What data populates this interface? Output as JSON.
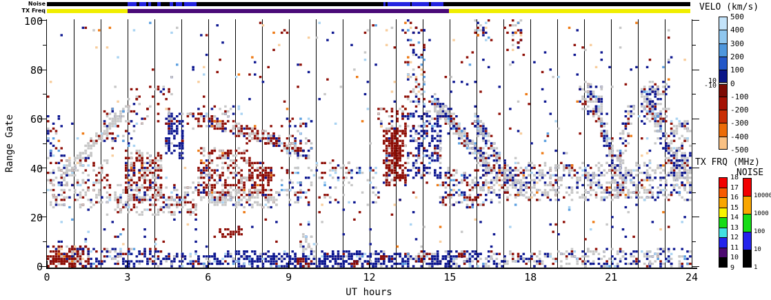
{
  "header": {
    "noise_label": "Noise",
    "txfreq_label": "TX Freq"
  },
  "axes": {
    "ylabel": "Range Gate",
    "xlabel": "UT hours",
    "yticks": [
      0,
      20,
      40,
      60,
      80,
      100
    ],
    "yminor": [
      10,
      30,
      50,
      70,
      90
    ],
    "xticks": [
      0,
      3,
      6,
      9,
      12,
      15,
      18,
      21,
      24
    ],
    "hour_gridlines": [
      1,
      2,
      3,
      4,
      5,
      6,
      7,
      8,
      9,
      10,
      11,
      12,
      13,
      14,
      15,
      16,
      17,
      18,
      19,
      20,
      21,
      22,
      23
    ]
  },
  "strips": {
    "noise": {
      "base_color": "#000000",
      "active_color": "#2424e0",
      "active_spans_hours": [
        [
          3.0,
          3.34
        ],
        [
          3.44,
          3.7
        ],
        [
          3.77,
          3.88
        ],
        [
          4.11,
          4.24
        ],
        [
          4.57,
          4.72
        ],
        [
          4.8,
          5.05
        ],
        [
          5.12,
          5.57
        ],
        [
          12.55,
          12.62
        ],
        [
          12.71,
          13.55
        ],
        [
          13.62,
          14.25
        ],
        [
          14.32,
          14.78
        ]
      ]
    },
    "txfreq": {
      "segments": [
        {
          "from_hour": 0,
          "to_hour": 3.02,
          "color": "#f0ee00"
        },
        {
          "from_hour": 3.02,
          "to_hour": 15.0,
          "color": "#4a0a78"
        },
        {
          "from_hour": 15.0,
          "to_hour": 24,
          "color": "#f0ee00"
        }
      ]
    }
  },
  "colorbars": {
    "velo": {
      "title": "VELO (km/s)",
      "vmax": 500,
      "vmin": -500,
      "ticks": [
        500,
        400,
        300,
        200,
        100,
        0,
        -100,
        -200,
        -300,
        -400,
        -500
      ],
      "side_ticks": [
        "10",
        "-10"
      ],
      "segments": [
        {
          "from": 500,
          "to": 400,
          "color": "#c3e3f9"
        },
        {
          "from": 400,
          "to": 300,
          "color": "#8fc7ef"
        },
        {
          "from": 300,
          "to": 200,
          "color": "#4e97dd"
        },
        {
          "from": 200,
          "to": 100,
          "color": "#2458c8"
        },
        {
          "from": 100,
          "to": 10,
          "color": "#0a1688"
        },
        {
          "from": 10,
          "to": -10,
          "color": "#c0c0c0"
        },
        {
          "from": -10,
          "to": -100,
          "color": "#7c0a04"
        },
        {
          "from": -100,
          "to": -200,
          "color": "#a51205"
        },
        {
          "from": -200,
          "to": -300,
          "color": "#c92f05"
        },
        {
          "from": -300,
          "to": -400,
          "color": "#ec6c08"
        },
        {
          "from": -400,
          "to": -500,
          "color": "#f9c184"
        }
      ]
    },
    "txfrq": {
      "title": "TX FRQ (MHz)",
      "ticks": [
        18,
        17,
        16,
        15,
        14,
        13,
        12,
        11,
        10,
        9
      ],
      "segment_colors": [
        "#f20000",
        "#f85a00",
        "#f9a600",
        "#f8f400",
        "#16dc16",
        "#42e2e2",
        "#2424ec",
        "#4c0a70",
        "#000000"
      ]
    },
    "noise": {
      "title": "NOISE",
      "ticks": [
        "10000",
        "1000",
        "100",
        "10",
        "1"
      ],
      "segment_colors": [
        "#f20000",
        "#f9a600",
        "#16dc16",
        "#2424ec",
        "#000000"
      ]
    }
  },
  "chart_data": {
    "type": "scatter",
    "title": "",
    "xlabel": "UT hours",
    "ylabel": "Range Gate",
    "x_range": [
      0,
      24
    ],
    "y_range": [
      0,
      100
    ],
    "grid": "vertical hour lines",
    "legend_position": "right colorbars (VELO km/s, TX FRQ MHz, NOISE)",
    "seed": 7,
    "cell_cols": 240,
    "cell_rows": 101,
    "colors": {
      "navy": "#0c1690",
      "dred": "#8e0d05",
      "gray": "#c7c7c7",
      "lblue": "#a9d3f2",
      "mblue": "#5b9fe0",
      "peach": "#f8cd9c",
      "orange": "#ee7a14"
    },
    "palettes": {
      "navyDense": [
        [
          "navy",
          0.84
        ],
        [
          "gray",
          0.07
        ],
        [
          "dred",
          0.04
        ],
        [
          "lblue",
          0.03
        ],
        [
          "mblue",
          0.02
        ]
      ],
      "navyMix": [
        [
          "navy",
          0.6
        ],
        [
          "gray",
          0.16
        ],
        [
          "dred",
          0.12
        ],
        [
          "lblue",
          0.06
        ],
        [
          "mblue",
          0.06
        ]
      ],
      "redDense": [
        [
          "dred",
          0.85
        ],
        [
          "gray",
          0.07
        ],
        [
          "navy",
          0.05
        ],
        [
          "orange",
          0.03
        ]
      ],
      "blobRed": [
        [
          "dred",
          0.94
        ],
        [
          "gray",
          0.03
        ],
        [
          "navy",
          0.03
        ]
      ],
      "redGray": [
        [
          "dred",
          0.58
        ],
        [
          "gray",
          0.3
        ],
        [
          "navy",
          0.09
        ],
        [
          "orange",
          0.03
        ]
      ],
      "redMix": [
        [
          "dred",
          0.52
        ],
        [
          "gray",
          0.22
        ],
        [
          "navy",
          0.14
        ],
        [
          "orange",
          0.06
        ],
        [
          "peach",
          0.06
        ]
      ],
      "grayDense": [
        [
          "gray",
          0.82
        ],
        [
          "navy",
          0.08
        ],
        [
          "dred",
          0.07
        ],
        [
          "lblue",
          0.03
        ]
      ],
      "grayNavy": [
        [
          "gray",
          0.52
        ],
        [
          "navy",
          0.3
        ],
        [
          "dred",
          0.11
        ],
        [
          "lblue",
          0.04
        ],
        [
          "mblue",
          0.03
        ]
      ],
      "grayRed": [
        [
          "gray",
          0.56
        ],
        [
          "dred",
          0.27
        ],
        [
          "navy",
          0.11
        ],
        [
          "lblue",
          0.06
        ]
      ],
      "grayBand": [
        [
          "gray",
          0.62
        ],
        [
          "navy",
          0.21
        ],
        [
          "dred",
          0.1
        ],
        [
          "lblue",
          0.04
        ],
        [
          "orange",
          0.015
        ],
        [
          "peach",
          0.015
        ]
      ],
      "mixedBand": [
        [
          "gray",
          0.38
        ],
        [
          "dred",
          0.26
        ],
        [
          "navy",
          0.22
        ],
        [
          "mblue",
          0.07
        ],
        [
          "lblue",
          0.07
        ]
      ],
      "mixed": [
        [
          "navy",
          0.28
        ],
        [
          "dred",
          0.26
        ],
        [
          "gray",
          0.16
        ],
        [
          "lblue",
          0.1
        ],
        [
          "mblue",
          0.06
        ],
        [
          "peach",
          0.08
        ],
        [
          "orange",
          0.06
        ]
      ],
      "sparseAll": [
        [
          "navy",
          0.29
        ],
        [
          "dred",
          0.26
        ],
        [
          "gray",
          0.16
        ],
        [
          "lblue",
          0.1
        ],
        [
          "mblue",
          0.05
        ],
        [
          "peach",
          0.08
        ],
        [
          "orange",
          0.06
        ]
      ]
    },
    "clusters": [
      {
        "sh": "r",
        "x": [
          0.05,
          1.65
        ],
        "g": [
          0,
          8
        ],
        "n": 140,
        "p": "redMix"
      },
      {
        "sh": "r",
        "x": [
          0.05,
          1.1
        ],
        "g": [
          0,
          5
        ],
        "n": 60,
        "p": "redDense"
      },
      {
        "sh": "r",
        "x": [
          1.65,
          4.2
        ],
        "g": [
          0,
          7
        ],
        "n": 110,
        "p": "navyMix"
      },
      {
        "sh": "r",
        "x": [
          4.2,
          7.0
        ],
        "g": [
          0,
          6
        ],
        "n": 110,
        "p": "navyMix"
      },
      {
        "sh": "r",
        "x": [
          7.0,
          13.3
        ],
        "g": [
          0,
          6
        ],
        "n": 340,
        "p": "navyDense"
      },
      {
        "sh": "r",
        "x": [
          13.3,
          16.1
        ],
        "g": [
          0,
          6
        ],
        "n": 160,
        "p": "navyMix"
      },
      {
        "sh": "r",
        "x": [
          16.1,
          19.5
        ],
        "g": [
          0,
          6
        ],
        "n": 110,
        "p": "grayNavy"
      },
      {
        "sh": "r",
        "x": [
          19.5,
          24
        ],
        "g": [
          0,
          7
        ],
        "n": 180,
        "p": "grayNavy"
      },
      {
        "sh": "r",
        "x": [
          9.3,
          9.9
        ],
        "g": [
          0,
          3
        ],
        "n": 16,
        "p": "redDense"
      },
      {
        "sh": "r",
        "x": [
          6.4,
          7.3
        ],
        "g": [
          12,
          16
        ],
        "n": 24,
        "p": "redDense"
      },
      {
        "sh": "r",
        "x": [
          0.0,
          2.4
        ],
        "g": [
          24,
          45
        ],
        "n": 185,
        "p": "grayRed"
      },
      {
        "sh": "d",
        "x": [
          0.6,
          2.9
        ],
        "g": [
          36,
          64
        ],
        "n": 140,
        "p": "grayDense",
        "w": 5
      },
      {
        "sh": "r",
        "x": [
          2.9,
          4.3
        ],
        "g": [
          27,
          47
        ],
        "n": 210,
        "p": "redGray"
      },
      {
        "sh": "r",
        "x": [
          2.5,
          5.6
        ],
        "g": [
          21,
          33
        ],
        "n": 200,
        "p": "grayRed"
      },
      {
        "sh": "r",
        "x": [
          4.4,
          5.1
        ],
        "g": [
          44,
          62
        ],
        "n": 90,
        "p": "navyDense"
      },
      {
        "sh": "d",
        "x": [
          5.7,
          8.6
        ],
        "g": [
          60,
          51
        ],
        "n": 150,
        "p": "redGray",
        "w": 5
      },
      {
        "sh": "r",
        "x": [
          5.6,
          7.7
        ],
        "g": [
          27,
          48
        ],
        "n": 260,
        "p": "redGray"
      },
      {
        "sh": "r",
        "x": [
          7.5,
          8.4
        ],
        "g": [
          29,
          42
        ],
        "n": 110,
        "p": "redDense"
      },
      {
        "sh": "d",
        "x": [
          8.3,
          9.7
        ],
        "g": [
          52,
          45
        ],
        "n": 70,
        "p": "mixedBand",
        "w": 4
      },
      {
        "sh": "r",
        "x": [
          6.0,
          8.7
        ],
        "g": [
          24,
          31
        ],
        "n": 120,
        "p": "grayDense"
      },
      {
        "sh": "r",
        "x": [
          8.7,
          12.4
        ],
        "g": [
          25,
          42
        ],
        "n": 130,
        "p": "mixedBand"
      },
      {
        "sh": "r",
        "x": [
          9.4,
          9.9
        ],
        "g": [
          6,
          13
        ],
        "n": 22,
        "p": "grayDense"
      },
      {
        "sh": "r",
        "x": [
          12.55,
          13.35
        ],
        "g": [
          33,
          56
        ],
        "n": 240,
        "p": "blobRed"
      },
      {
        "sh": "r",
        "x": [
          12.3,
          13.4
        ],
        "g": [
          56,
          65
        ],
        "n": 40,
        "p": "redMix"
      },
      {
        "sh": "r",
        "x": [
          13.4,
          14.7
        ],
        "g": [
          36,
          63
        ],
        "n": 200,
        "p": "navyMix"
      },
      {
        "sh": "r",
        "x": [
          13.35,
          14.1
        ],
        "g": [
          64,
          100
        ],
        "n": 80,
        "p": "mixed"
      },
      {
        "sh": "d",
        "x": [
          14.4,
          16.6
        ],
        "g": [
          68,
          38
        ],
        "n": 260,
        "p": "grayNavy",
        "w": 6
      },
      {
        "sh": "d",
        "x": [
          15.9,
          17.6
        ],
        "g": [
          60,
          30
        ],
        "n": 150,
        "p": "grayNavy",
        "w": 5
      },
      {
        "sh": "r",
        "x": [
          14.6,
          16.3
        ],
        "g": [
          24,
          40
        ],
        "n": 120,
        "p": "mixedBand"
      },
      {
        "sh": "r",
        "x": [
          16.2,
          19.5
        ],
        "g": [
          27,
          42
        ],
        "n": 300,
        "p": "grayBand"
      },
      {
        "sh": "r",
        "x": [
          19.5,
          24
        ],
        "g": [
          27,
          42
        ],
        "n": 430,
        "p": "grayBand"
      },
      {
        "sh": "r",
        "x": [
          19.8,
          20.7
        ],
        "g": [
          62,
          75
        ],
        "n": 55,
        "p": "grayNavy"
      },
      {
        "sh": "d",
        "x": [
          20.2,
          21.25
        ],
        "g": [
          72,
          40
        ],
        "n": 130,
        "p": "grayNavy",
        "w": 4
      },
      {
        "sh": "d",
        "x": [
          21.25,
          21.75
        ],
        "g": [
          40,
          66
        ],
        "n": 60,
        "p": "grayNavy",
        "w": 3
      },
      {
        "sh": "r",
        "x": [
          22.1,
          23.1
        ],
        "g": [
          58,
          76
        ],
        "n": 90,
        "p": "grayNavy"
      },
      {
        "sh": "d",
        "x": [
          22.3,
          23.3
        ],
        "g": [
          72,
          42
        ],
        "n": 110,
        "p": "grayNavy",
        "w": 4
      },
      {
        "sh": "r",
        "x": [
          23.2,
          24
        ],
        "g": [
          35,
          60
        ],
        "n": 140,
        "p": "grayBand"
      },
      {
        "sh": "r",
        "x": [
          17.25,
          17.75
        ],
        "g": [
          88,
          100
        ],
        "n": 28,
        "p": "mixed"
      },
      {
        "sh": "r",
        "x": [
          15.9,
          16.45
        ],
        "g": [
          92,
          100
        ],
        "n": 20,
        "p": "mixed"
      },
      {
        "sh": "r",
        "x": [
          2.1,
          3.3
        ],
        "g": [
          48,
          65
        ],
        "n": 45,
        "p": "mixedBand"
      },
      {
        "sh": "r",
        "x": [
          3.0,
          4.6
        ],
        "g": [
          58,
          73
        ],
        "n": 40,
        "p": "redMix"
      },
      {
        "sh": "r",
        "x": [
          0.0,
          0.6
        ],
        "g": [
          44,
          62
        ],
        "n": 25,
        "p": "navyMix"
      },
      {
        "sh": "r",
        "x": [
          5.2,
          7.2
        ],
        "g": [
          55,
          66
        ],
        "n": 45,
        "p": "mixedBand"
      },
      {
        "sh": "r",
        "x": [
          8.9,
          9.9
        ],
        "g": [
          44,
          60
        ],
        "n": 45,
        "p": "mixedBand"
      },
      {
        "sh": "r",
        "x": [
          0,
          24
        ],
        "g": [
          7,
          100
        ],
        "n": 430,
        "p": "sparseAll"
      },
      {
        "sh": "r",
        "x": [
          12.4,
          12.65
        ],
        "g": [
          2,
          5
        ],
        "n": 10,
        "p": "redDense"
      },
      {
        "sh": "r",
        "x": [
          13.85,
          14.1
        ],
        "g": [
          2,
          4
        ],
        "n": 8,
        "p": "redDense"
      },
      {
        "sh": "r",
        "x": [
          15.3,
          15.6
        ],
        "g": [
          4,
          6
        ],
        "n": 8,
        "p": "redDense"
      },
      {
        "sh": "r",
        "x": [
          11.35,
          11.6
        ],
        "g": [
          0,
          2
        ],
        "n": 8,
        "p": "redDense"
      }
    ]
  }
}
